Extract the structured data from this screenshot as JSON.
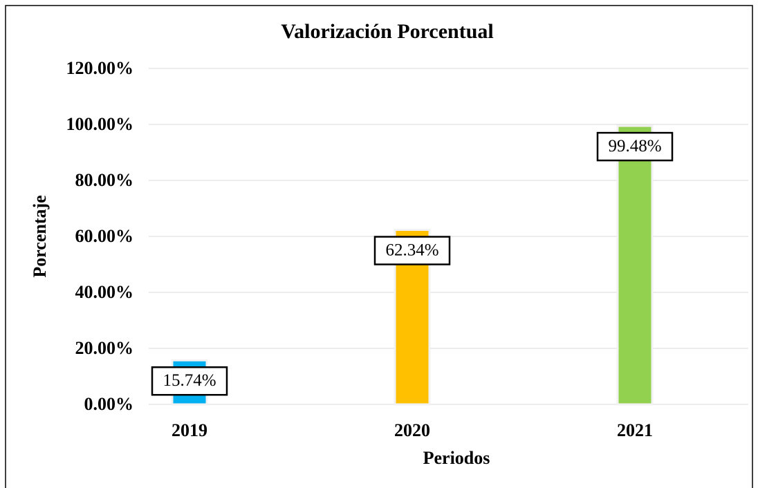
{
  "chart_data": {
    "type": "bar",
    "title": "Valorización Porcentual",
    "x_label": "Periodos",
    "y_label": "Porcentaje",
    "categories": [
      "2019",
      "2020",
      "2021"
    ],
    "values": [
      15.74,
      62.34,
      99.48
    ],
    "value_labels": [
      "15.74%",
      "62.34%",
      "99.48%"
    ],
    "colors": [
      "#00B0F0",
      "#FFC000",
      "#92D050"
    ],
    "ylim": [
      0,
      120
    ],
    "yticks": [
      {
        "value": 0,
        "label": "0.00%"
      },
      {
        "value": 20,
        "label": "20.00%"
      },
      {
        "value": 40,
        "label": "40.00%"
      },
      {
        "value": 60,
        "label": "60.00%"
      },
      {
        "value": 80,
        "label": "80.00%"
      },
      {
        "value": 100,
        "label": "100.00%"
      },
      {
        "value": 120,
        "label": "120.00%"
      }
    ],
    "grid": true
  }
}
